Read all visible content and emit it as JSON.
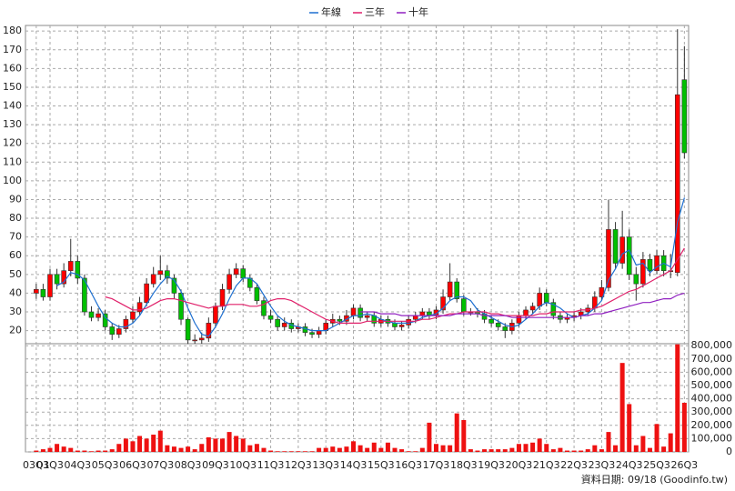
{
  "chart_data": [
    {
      "type": "candlestick",
      "legend": "top",
      "grid": true,
      "up_color": "#ff0000",
      "down_color": "#00c000",
      "categories": [
        "03Q1",
        null,
        "03Q3",
        null,
        null,
        null,
        "04Q3",
        null,
        null,
        null,
        "05Q3",
        null,
        null,
        null,
        "06Q3",
        null,
        null,
        null,
        "07Q3",
        null,
        null,
        null,
        "08Q3",
        null,
        null,
        null,
        "09Q3",
        null,
        null,
        null,
        "10Q3",
        null,
        null,
        null,
        "11Q3",
        null,
        null,
        null,
        "12Q3",
        null,
        null,
        null,
        "13Q3",
        null,
        null,
        null,
        "14Q3",
        null,
        null,
        null,
        "15Q3",
        null,
        null,
        null,
        "16Q3",
        null,
        null,
        null,
        "17Q3",
        null,
        null,
        null,
        "18Q3",
        null,
        null,
        null,
        "19Q3",
        null,
        null,
        null,
        "20Q3",
        null,
        null,
        null,
        "21Q3",
        null,
        null,
        null,
        "22Q3",
        null,
        null,
        null,
        "23Q3",
        null,
        null,
        null,
        "24Q3",
        null,
        null,
        null,
        "25Q3",
        null,
        null,
        null,
        "26Q3"
      ],
      "open": [
        40,
        42,
        38,
        50,
        45,
        52,
        57,
        48,
        30,
        27,
        29,
        22,
        18,
        21,
        26,
        30,
        35,
        45,
        50,
        52,
        48,
        40,
        26,
        15,
        15,
        16,
        24,
        33,
        42,
        50,
        53,
        48,
        43,
        36,
        28,
        26,
        22,
        24,
        21,
        22,
        19,
        18,
        20,
        24,
        26,
        25,
        28,
        32,
        27,
        28,
        24,
        26,
        24,
        22,
        23,
        26,
        28,
        30,
        28,
        31,
        38,
        46,
        37,
        30,
        30,
        29,
        26,
        24,
        22,
        20,
        24,
        28,
        31,
        33,
        40,
        35,
        28,
        26,
        27,
        28,
        30,
        32,
        38,
        43,
        74,
        56,
        70,
        50,
        45,
        58,
        52,
        60,
        52,
        51,
        154
      ],
      "high": [
        45,
        45,
        53,
        53,
        56,
        69,
        60,
        50,
        33,
        32,
        31,
        24,
        23,
        28,
        33,
        38,
        48,
        54,
        60,
        55,
        50,
        42,
        27,
        18,
        19,
        27,
        35,
        45,
        53,
        56,
        55,
        50,
        45,
        38,
        31,
        28,
        27,
        26,
        24,
        24,
        21,
        22,
        26,
        29,
        28,
        31,
        34,
        34,
        30,
        30,
        28,
        28,
        26,
        25,
        28,
        30,
        32,
        32,
        33,
        42,
        56,
        48,
        39,
        32,
        32,
        31,
        28,
        26,
        24,
        26,
        30,
        33,
        35,
        43,
        42,
        37,
        30,
        29,
        30,
        32,
        34,
        41,
        47,
        90,
        78,
        84,
        74,
        54,
        62,
        61,
        63,
        63,
        61,
        181,
        172
      ],
      "low": [
        37,
        36,
        36,
        42,
        43,
        49,
        45,
        28,
        25,
        25,
        20,
        15,
        16,
        19,
        24,
        28,
        33,
        43,
        47,
        45,
        37,
        23,
        13,
        13,
        13,
        14,
        22,
        31,
        40,
        48,
        46,
        41,
        34,
        26,
        24,
        20,
        20,
        19,
        19,
        17,
        16,
        16,
        18,
        22,
        23,
        23,
        26,
        25,
        25,
        22,
        22,
        22,
        20,
        20,
        21,
        24,
        26,
        26,
        26,
        29,
        36,
        35,
        28,
        28,
        27,
        24,
        22,
        20,
        16,
        18,
        22,
        26,
        29,
        31,
        33,
        26,
        24,
        24,
        25,
        26,
        28,
        30,
        36,
        41,
        53,
        53,
        47,
        36,
        43,
        49,
        50,
        49,
        48,
        49,
        112
      ],
      "close": [
        42,
        38,
        50,
        45,
        52,
        57,
        48,
        30,
        27,
        29,
        22,
        18,
        21,
        26,
        30,
        35,
        45,
        50,
        52,
        48,
        40,
        26,
        15,
        15,
        16,
        24,
        33,
        42,
        50,
        53,
        48,
        43,
        36,
        28,
        26,
        22,
        24,
        21,
        22,
        19,
        18,
        20,
        24,
        26,
        25,
        28,
        32,
        27,
        28,
        24,
        26,
        24,
        22,
        23,
        26,
        28,
        30,
        28,
        31,
        38,
        46,
        37,
        30,
        30,
        29,
        26,
        24,
        22,
        20,
        24,
        28,
        31,
        33,
        40,
        35,
        28,
        26,
        27,
        28,
        30,
        32,
        38,
        43,
        74,
        56,
        70,
        50,
        45,
        58,
        52,
        60,
        52,
        52,
        146,
        115
      ],
      "series": [
        {
          "name": "年線",
          "color": "#1e6fd0",
          "values": [
            null,
            null,
            null,
            44,
            46,
            51,
            50,
            47,
            40,
            33,
            27,
            24,
            22,
            22,
            24,
            28,
            34,
            40,
            45,
            49,
            47,
            41,
            32,
            24,
            18,
            17,
            22,
            29,
            37,
            44,
            48,
            48,
            45,
            39,
            33,
            28,
            25,
            23,
            22,
            21,
            20,
            20,
            20,
            22,
            24,
            26,
            28,
            28,
            29,
            28,
            26,
            25,
            24,
            24,
            24,
            25,
            27,
            28,
            29,
            32,
            36,
            38,
            38,
            36,
            31,
            29,
            27,
            25,
            23,
            22,
            23,
            26,
            29,
            33,
            35,
            34,
            32,
            29,
            27,
            28,
            29,
            32,
            36,
            47,
            53,
            61,
            63,
            55,
            56,
            51,
            54,
            56,
            54,
            78,
            91
          ]
        },
        {
          "name": "三年",
          "color": "#e0206a",
          "values": [
            null,
            null,
            null,
            null,
            null,
            null,
            null,
            null,
            null,
            null,
            38,
            37,
            35,
            33,
            31,
            31,
            32,
            34,
            36,
            37,
            37,
            36,
            35,
            34,
            33,
            32,
            33,
            33,
            34,
            34,
            34,
            33,
            33,
            34,
            36,
            37,
            37,
            36,
            34,
            32,
            30,
            28,
            26,
            25,
            24,
            24,
            24,
            24,
            25,
            25,
            25,
            25,
            25,
            25,
            25,
            25,
            26,
            26,
            27,
            28,
            29,
            29,
            30,
            30,
            30,
            30,
            29,
            29,
            28,
            28,
            28,
            28,
            28,
            29,
            29,
            30,
            30,
            30,
            30,
            31,
            31,
            32,
            33,
            35,
            37,
            39,
            41,
            42,
            44,
            46,
            48,
            50,
            52,
            58,
            64
          ]
        },
        {
          "name": "十年",
          "color": "#9020c0",
          "values": [
            null,
            null,
            null,
            null,
            null,
            null,
            null,
            null,
            null,
            null,
            null,
            null,
            null,
            null,
            null,
            null,
            null,
            null,
            null,
            null,
            null,
            null,
            null,
            null,
            null,
            null,
            null,
            null,
            null,
            null,
            null,
            null,
            null,
            null,
            null,
            null,
            null,
            null,
            null,
            null,
            null,
            null,
            null,
            null,
            null,
            null,
            null,
            30,
            30,
            30,
            29,
            29,
            29,
            28,
            28,
            28,
            28,
            28,
            28,
            28,
            28,
            29,
            29,
            29,
            29,
            28,
            28,
            28,
            28,
            27,
            27,
            27,
            27,
            27,
            27,
            27,
            27,
            27,
            27,
            28,
            28,
            29,
            29,
            30,
            31,
            32,
            33,
            34,
            35,
            35,
            36,
            37,
            37,
            39,
            40
          ]
        }
      ],
      "ylim": [
        13,
        183
      ],
      "yticks": [
        20,
        30,
        40,
        50,
        60,
        70,
        80,
        90,
        100,
        110,
        120,
        130,
        140,
        150,
        160,
        170,
        180
      ]
    },
    {
      "type": "bar",
      "color": "#ee1111",
      "values": [
        10000,
        20000,
        30000,
        60000,
        40000,
        30000,
        10000,
        10000,
        5000,
        10000,
        10000,
        20000,
        60000,
        100000,
        80000,
        120000,
        100000,
        130000,
        160000,
        50000,
        40000,
        30000,
        40000,
        20000,
        60000,
        110000,
        100000,
        100000,
        150000,
        120000,
        100000,
        50000,
        60000,
        30000,
        10000,
        5000,
        5000,
        5000,
        5000,
        5000,
        5000,
        30000,
        30000,
        40000,
        30000,
        40000,
        80000,
        50000,
        30000,
        70000,
        30000,
        70000,
        30000,
        20000,
        5000,
        5000,
        30000,
        220000,
        60000,
        50000,
        50000,
        290000,
        240000,
        20000,
        10000,
        20000,
        20000,
        20000,
        20000,
        30000,
        60000,
        60000,
        70000,
        100000,
        60000,
        20000,
        30000,
        10000,
        10000,
        10000,
        20000,
        50000,
        20000,
        150000,
        50000,
        670000,
        360000,
        50000,
        120000,
        30000,
        210000,
        40000,
        140000,
        810000,
        370000
      ],
      "ylim": [
        0,
        815000
      ],
      "yticks": [
        0,
        {
          "value": 100000,
          "label": "100,000"
        },
        {
          "value": 200000,
          "label": "200,000"
        },
        {
          "value": 300000,
          "label": "300,000"
        },
        {
          "value": 400000,
          "label": "400,000"
        },
        {
          "value": 500000,
          "label": "500,000"
        },
        {
          "value": 600000,
          "label": "600,000"
        },
        {
          "value": 700000,
          "label": "700,000"
        },
        {
          "value": 800000,
          "label": "800,000"
        }
      ],
      "note": "資料日期: 09/18 (Goodinfo.tw)"
    }
  ]
}
